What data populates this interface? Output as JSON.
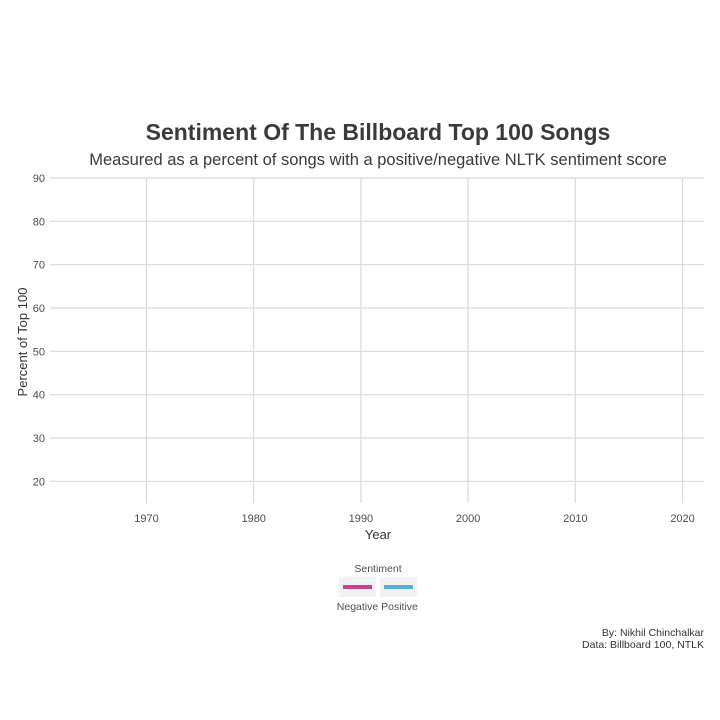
{
  "chart_data": {
    "type": "line",
    "title": "Sentiment Of The Billboard Top 100 Songs",
    "subtitle": "Measured as a percent of songs with a positive/negative NLTK sentiment score",
    "xlabel": "Year",
    "ylabel": "Percent of Top 100",
    "xlim": [
      1961,
      2022
    ],
    "ylim": [
      15,
      90
    ],
    "x_ticks": [
      1970,
      1980,
      1990,
      2000,
      2010,
      2020
    ],
    "y_ticks": [
      20,
      30,
      40,
      50,
      60,
      70,
      80,
      90
    ],
    "grid": true,
    "legend": {
      "title": "Sentiment",
      "placement": "bottom"
    },
    "series": [
      {
        "name": "Negative",
        "color": "#c9418e",
        "x": [],
        "y": []
      },
      {
        "name": "Positive",
        "color": "#56b0d8",
        "x": [],
        "y": []
      }
    ],
    "caption": [
      "By: Nikhil Chinchalkar",
      "Data: Billboard 100, NTLK"
    ]
  }
}
